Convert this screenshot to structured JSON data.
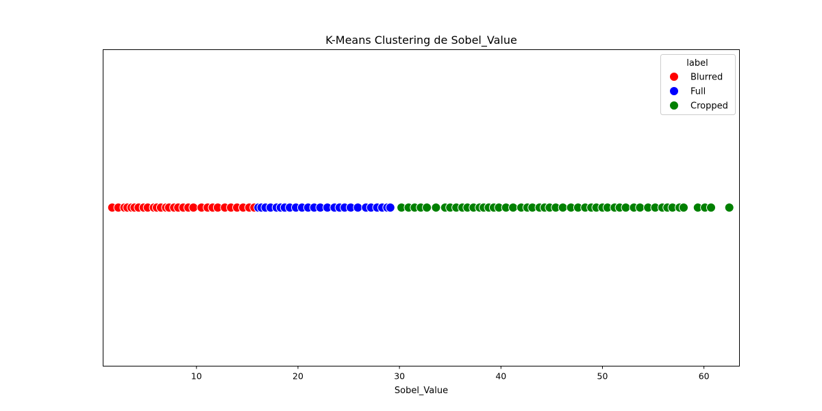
{
  "chart_data": {
    "type": "scatter",
    "title": "K-Means Clustering de Sobel_Value",
    "xlabel": "Sobel_Value",
    "ylabel": "",
    "xlim": [
      0.8,
      63.5
    ],
    "xticks": [
      10,
      20,
      30,
      40,
      50,
      60
    ],
    "grid": false,
    "legend": {
      "title": "label",
      "position": "top-right",
      "entries": [
        "Blurred",
        "Full",
        "Cropped"
      ]
    },
    "series": [
      {
        "name": "Blurred",
        "color": "#ff0000",
        "x": [
          1.7,
          2.3,
          2.9,
          3.2,
          3.6,
          3.9,
          4.3,
          4.8,
          5.2,
          5.8,
          6.1,
          6.5,
          7.0,
          7.3,
          7.8,
          8.2,
          8.7,
          9.2,
          9.7,
          10.5,
          11.1,
          11.6,
          12.1,
          12.8,
          13.4,
          14.0,
          14.6,
          15.2,
          15.7
        ]
      },
      {
        "name": "Full",
        "color": "#0000ff",
        "x": [
          16.1,
          16.4,
          16.8,
          17.3,
          17.9,
          18.3,
          18.7,
          19.2,
          19.8,
          20.4,
          21.0,
          21.6,
          22.2,
          22.9,
          23.6,
          24.1,
          24.6,
          25.2,
          25.9,
          26.7,
          27.2,
          27.8,
          28.3,
          28.8,
          29.1
        ]
      },
      {
        "name": "Cropped",
        "color": "#008000",
        "x": [
          30.2,
          30.9,
          31.5,
          32.1,
          32.7,
          33.6,
          34.5,
          35.0,
          35.6,
          36.2,
          36.7,
          37.3,
          37.9,
          38.3,
          38.8,
          39.3,
          39.8,
          40.5,
          41.2,
          42.0,
          42.6,
          43.1,
          43.8,
          44.3,
          44.8,
          45.4,
          46.1,
          46.9,
          47.6,
          48.3,
          48.9,
          49.4,
          50.0,
          50.5,
          51.2,
          51.7,
          52.3,
          53.1,
          53.7,
          54.5,
          55.2,
          55.9,
          56.4,
          56.9,
          57.6,
          58.0,
          59.4,
          60.1,
          60.7,
          62.5
        ]
      }
    ]
  }
}
